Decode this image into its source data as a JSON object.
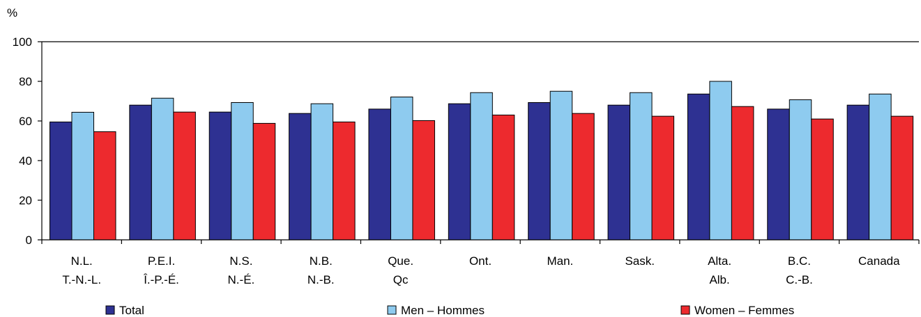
{
  "chart_data": {
    "type": "bar",
    "ylabel": "%",
    "ylim": [
      0,
      100
    ],
    "yticks": [
      0,
      20,
      40,
      60,
      80,
      100
    ],
    "grid": false,
    "legend_position": "bottom",
    "categories": [
      [
        "N.L.",
        "T.-N.-L."
      ],
      [
        "P.E.I.",
        "Î.-P.-É."
      ],
      [
        "N.S.",
        "N.-É."
      ],
      [
        "N.B.",
        "N.-B."
      ],
      [
        "Que.",
        "Qc"
      ],
      [
        "Ont."
      ],
      [
        "Man."
      ],
      [
        "Sask."
      ],
      [
        "Alta.",
        "Alb."
      ],
      [
        "B.C.",
        "C.-B."
      ],
      [
        "Canada"
      ]
    ],
    "series": [
      {
        "name": "Total",
        "color": "#2e3192",
        "values": [
          59.5,
          68,
          64.5,
          63.8,
          66,
          68.7,
          69.3,
          68,
          73.6,
          66,
          68
        ]
      },
      {
        "name": "Men – Hommes",
        "color": "#8ecbef",
        "values": [
          64.4,
          71.5,
          69.3,
          68.7,
          72.1,
          74.3,
          75,
          74.3,
          80,
          70.7,
          73.6
        ]
      },
      {
        "name": "Women – Femmes",
        "color": "#ed2a2e",
        "values": [
          54.6,
          64.5,
          58.8,
          59.5,
          60.2,
          63,
          63.8,
          62.4,
          67.3,
          61,
          62.4
        ]
      }
    ]
  }
}
